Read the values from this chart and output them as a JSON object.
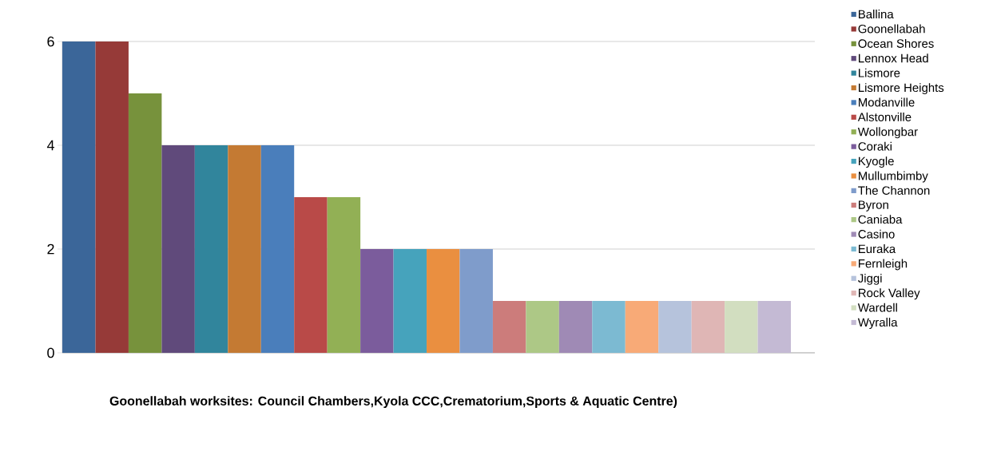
{
  "chart_data": {
    "type": "bar",
    "xlabel": "Goonellabah worksites: Council Chambers,Kyola CCC,Crematorium,Sports & Aquatic Centre)",
    "categories": [
      null
    ],
    "series": [
      {
        "name": "Ballina",
        "color": "#3b6699",
        "values": [
          6
        ]
      },
      {
        "name": "Goonellabah",
        "color": "#963a38",
        "values": [
          6
        ]
      },
      {
        "name": "Ocean Shores",
        "color": "#77923c",
        "values": [
          5
        ]
      },
      {
        "name": "Lennox Head",
        "color": "#604a7b",
        "values": [
          4
        ]
      },
      {
        "name": "Lismore",
        "color": "#31859c",
        "values": [
          4
        ]
      },
      {
        "name": "Lismore Heights",
        "color": "#c47a33",
        "values": [
          4
        ]
      },
      {
        "name": "Modanville",
        "color": "#4a7ebb",
        "values": [
          4
        ]
      },
      {
        "name": "Alstonville",
        "color": "#b94a48",
        "values": [
          3
        ]
      },
      {
        "name": "Wollongbar",
        "color": "#92b055",
        "values": [
          3
        ]
      },
      {
        "name": "Coraki",
        "color": "#7b5c9c",
        "values": [
          2
        ]
      },
      {
        "name": "Kyogle",
        "color": "#46a3bc",
        "values": [
          2
        ]
      },
      {
        "name": "Mullumbimby",
        "color": "#ea8f40",
        "values": [
          2
        ]
      },
      {
        "name": "The Channon",
        "color": "#7f9ccb",
        "values": [
          2
        ]
      },
      {
        "name": "Byron",
        "color": "#cc7c7b",
        "values": [
          1
        ]
      },
      {
        "name": "Caniaba",
        "color": "#adc886",
        "values": [
          1
        ]
      },
      {
        "name": "Casino",
        "color": "#9f8ab5",
        "values": [
          1
        ]
      },
      {
        "name": "Euraka",
        "color": "#7cbad2",
        "values": [
          1
        ]
      },
      {
        "name": "Fernleigh",
        "color": "#f8aa77",
        "values": [
          1
        ]
      },
      {
        "name": "Jiggi",
        "color": "#b6c3dc",
        "values": [
          1
        ]
      },
      {
        "name": "Rock Valley",
        "color": "#dfb6b5",
        "values": [
          1
        ]
      },
      {
        "name": "Wardell",
        "color": "#d2dec0",
        "values": [
          1
        ]
      },
      {
        "name": "Wyralla",
        "color": "#c4bad4",
        "values": [
          1
        ]
      }
    ],
    "ylim": [
      0,
      6
    ],
    "yticks": [
      0,
      2,
      4,
      6
    ],
    "grid": "y",
    "legend": "right"
  }
}
